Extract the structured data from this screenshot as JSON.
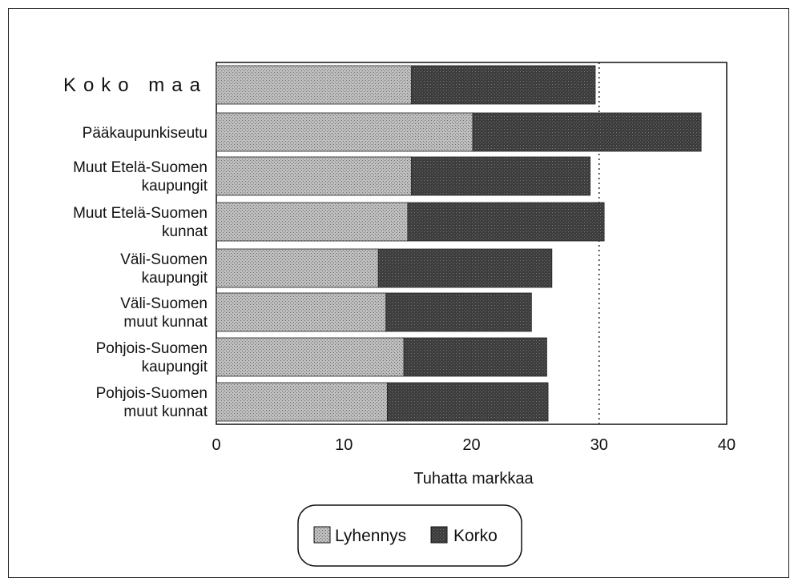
{
  "chart_data": {
    "type": "bar",
    "orientation": "horizontal",
    "stacked": true,
    "categories": [
      [
        "Koko maa"
      ],
      [
        "Pääkaupunkiseutu"
      ],
      [
        "Muut Etelä-Suomen",
        "kaupungit"
      ],
      [
        "Muut Etelä-Suomen",
        "kunnat"
      ],
      [
        "Väli-Suomen",
        "kaupungit"
      ],
      [
        "Väli-Suomen",
        "muut kunnat"
      ],
      [
        "Pohjois-Suomen",
        "kaupungit"
      ],
      [
        "Pohjois-Suomen",
        "muut kunnat"
      ]
    ],
    "series": [
      {
        "name": "Lyhennys",
        "values": [
          15.3,
          20.1,
          15.3,
          15.0,
          12.7,
          13.3,
          14.7,
          13.4
        ]
      },
      {
        "name": "Korko",
        "values": [
          14.4,
          17.9,
          14.0,
          15.4,
          13.6,
          11.4,
          11.2,
          12.6
        ]
      }
    ],
    "colors": {
      "Lyhennys": "#b4b4b4",
      "Korko": "#4a4a4a"
    },
    "xlabel": "Tuhatta markkaa",
    "xlim": [
      0,
      40
    ],
    "xticks": [
      0,
      10,
      20,
      30,
      40
    ],
    "reference_line": 30,
    "grid": false,
    "legend_position": "bottom"
  }
}
